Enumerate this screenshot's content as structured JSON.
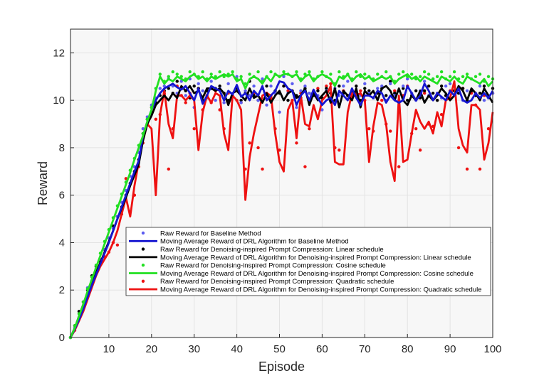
{
  "chart_data": {
    "type": "line",
    "title": "",
    "xlabel": "Episode",
    "ylabel": "Reward",
    "xlim": [
      1,
      100
    ],
    "ylim": [
      0,
      13
    ],
    "grid": true,
    "xticks": [
      "10",
      "20",
      "30",
      "40",
      "50",
      "60",
      "70",
      "80",
      "90",
      "100"
    ],
    "yticks": [
      "0",
      "2",
      "4",
      "6",
      "8",
      "10",
      "12"
    ],
    "legend_position": "bottom-right",
    "colors": {
      "baseline": "#1515d0",
      "baseline_raw": "#5c5cf0",
      "linear": "#000000",
      "cosine": "#22e022",
      "quadratic": "#ee1111",
      "axes_bg": "#f7f7f7",
      "grid": "#e3e3e3"
    },
    "legend": [
      "Raw Reward for Baseline Method",
      "Moving Average Reward of DRL Algorithm for Baseline Method",
      "Raw Reward for Denoising-inspired Prompt Compression: Linear schedule",
      "Moving Average Reward of DRL Algorithm for Denoising-inspired Prompt Compression: Linear schedule",
      "Raw Reward for Denoising-inspired Prompt Compression: Cosine schedule",
      "Moving Average Reward of DRL Algorithm for Denoising-inspired Prompt Compression: Cosine schedule",
      "Raw Reward for Denoising-inspired Prompt Compression: Quadratic schedule",
      "Moving Average Reward of DRL Algorithm for Denoising-inspired Prompt Compression: Quadratic schedule"
    ],
    "x": [
      1,
      2,
      3,
      4,
      5,
      6,
      7,
      8,
      9,
      10,
      11,
      12,
      13,
      14,
      15,
      16,
      17,
      18,
      19,
      20,
      21,
      22,
      23,
      24,
      25,
      26,
      27,
      28,
      29,
      30,
      31,
      32,
      33,
      34,
      35,
      36,
      37,
      38,
      39,
      40,
      41,
      42,
      43,
      44,
      45,
      46,
      47,
      48,
      49,
      50,
      51,
      52,
      53,
      54,
      55,
      56,
      57,
      58,
      59,
      60,
      61,
      62,
      63,
      64,
      65,
      66,
      67,
      68,
      69,
      70,
      71,
      72,
      73,
      74,
      75,
      76,
      77,
      78,
      79,
      80,
      81,
      82,
      83,
      84,
      85,
      86,
      87,
      88,
      89,
      90,
      91,
      92,
      93,
      94,
      95,
      96,
      97,
      98,
      99,
      100
    ],
    "series": [
      {
        "name": "Moving Average Reward of DRL Algorithm for Baseline Method",
        "values": [
          0.0,
          0.35,
          0.75,
          1.2,
          1.7,
          2.2,
          2.65,
          3.1,
          3.55,
          4.0,
          4.5,
          5.0,
          5.5,
          6.0,
          6.5,
          7.0,
          7.45,
          8.5,
          9.1,
          9.6,
          10.0,
          10.3,
          10.5,
          10.6,
          10.7,
          10.55,
          10.45,
          10.6,
          10.3,
          10.0,
          10.5,
          9.85,
          10.2,
          10.6,
          10.5,
          10.4,
          10.0,
          10.4,
          10.25,
          10.65,
          10.15,
          10.3,
          10.0,
          10.4,
          10.2,
          10.6,
          10.0,
          10.2,
          10.4,
          10.8,
          10.75,
          10.5,
          10.4,
          9.8,
          10.2,
          10.4,
          10.0,
          10.45,
          10.1,
          9.8,
          10.0,
          10.1,
          9.8,
          10.4,
          10.2,
          10.0,
          10.5,
          10.1,
          9.8,
          10.2,
          10.2,
          10.1,
          10.4,
          10.3,
          9.9,
          10.2,
          10.0,
          9.9,
          10.0,
          10.6,
          10.3,
          10.0,
          10.2,
          10.7,
          10.4,
          10.0,
          10.3,
          10.15,
          10.0,
          10.4,
          10.2,
          10.5,
          10.0,
          9.9,
          10.0,
          10.3,
          10.1,
          10.3,
          10.1,
          10.4
        ]
      },
      {
        "name": "Moving Average Reward of DRL Algorithm for Denoising-inspired Prompt Compression: Linear schedule",
        "values": [
          0.0,
          0.4,
          0.9,
          1.4,
          1.9,
          2.35,
          2.75,
          3.15,
          3.6,
          4.05,
          4.5,
          5.0,
          5.45,
          5.9,
          6.4,
          6.85,
          7.3,
          8.3,
          9.0,
          9.35,
          9.8,
          10.0,
          10.2,
          10.0,
          10.3,
          10.1,
          10.6,
          10.4,
          10.6,
          10.3,
          10.4,
          10.1,
          10.5,
          10.5,
          10.4,
          10.5,
          10.3,
          9.8,
          10.3,
          10.4,
          10.2,
          10.0,
          10.5,
          10.1,
          10.2,
          9.9,
          10.3,
          9.9,
          10.2,
          10.4,
          10.0,
          10.3,
          10.4,
          10.1,
          10.2,
          10.5,
          9.8,
          10.3,
          10.0,
          10.2,
          10.4,
          9.9,
          10.5,
          9.7,
          10.4,
          10.2,
          10.0,
          10.5,
          9.7,
          10.4,
          10.2,
          10.4,
          10.0,
          10.5,
          10.6,
          10.4,
          10.0,
          10.5,
          10.0,
          9.8,
          10.2,
          10.0,
          10.4,
          9.9,
          10.2,
          10.0,
          10.2,
          10.5,
          10.3,
          10.0,
          10.2,
          10.6,
          10.4,
          10.0,
          10.5,
          10.3,
          10.0,
          10.5,
          10.2,
          9.9
        ]
      },
      {
        "name": "Moving Average Reward of DRL Algorithm for Denoising-inspired Prompt Compression: Cosine schedule",
        "values": [
          0.0,
          0.4,
          0.9,
          1.4,
          1.95,
          2.45,
          2.95,
          3.45,
          3.95,
          4.45,
          4.95,
          5.45,
          5.95,
          6.45,
          6.95,
          7.5,
          8.0,
          8.5,
          9.1,
          9.6,
          10.4,
          11.0,
          10.7,
          10.9,
          10.8,
          11.0,
          10.9,
          10.8,
          11.0,
          11.1,
          10.9,
          11.0,
          10.8,
          11.0,
          10.9,
          11.0,
          11.1,
          11.0,
          11.1,
          10.8,
          10.9,
          10.5,
          10.9,
          11.0,
          10.9,
          10.7,
          11.0,
          10.8,
          11.1,
          11.0,
          11.1,
          11.1,
          11.0,
          11.1,
          10.8,
          11.0,
          11.1,
          10.8,
          11.0,
          11.1,
          11.0,
          10.9,
          10.6,
          11.0,
          10.9,
          11.1,
          10.8,
          11.0,
          11.1,
          10.9,
          11.0,
          10.8,
          10.9,
          11.0,
          10.9,
          11.0,
          10.7,
          10.9,
          11.0,
          11.1,
          10.9,
          11.0,
          10.8,
          11.0,
          10.9,
          10.8,
          10.7,
          11.0,
          10.9,
          10.8,
          11.0,
          10.8,
          10.7,
          11.0,
          10.9,
          10.8,
          10.7,
          10.9,
          10.6,
          10.8
        ]
      },
      {
        "name": "Moving Average Reward of DRL Algorithm for Denoising-inspired Prompt Compression: Quadratic schedule",
        "values": [
          0.0,
          0.3,
          0.7,
          1.1,
          1.6,
          2.1,
          2.6,
          3.0,
          3.3,
          3.6,
          4.0,
          4.5,
          5.2,
          5.9,
          5.1,
          6.4,
          7.4,
          8.3,
          9.0,
          8.8,
          6.0,
          9.4,
          10.4,
          9.0,
          8.4,
          10.2,
          10.2,
          10.0,
          10.2,
          10.0,
          7.9,
          9.5,
          10.2,
          9.9,
          10.3,
          10.2,
          8.6,
          7.9,
          10.2,
          10.0,
          9.6,
          5.8,
          7.6,
          8.6,
          9.4,
          10.2,
          10.3,
          10.2,
          8.6,
          7.4,
          7.0,
          9.6,
          10.0,
          8.4,
          10.2,
          9.0,
          8.9,
          9.8,
          9.2,
          10.0,
          10.2,
          10.6,
          7.4,
          7.3,
          7.3,
          9.5,
          10.3,
          10.2,
          10.3,
          10.0,
          7.4,
          8.9,
          9.9,
          9.8,
          9.0,
          7.4,
          6.6,
          10.2,
          7.4,
          7.5,
          8.6,
          9.6,
          9.1,
          8.8,
          9.1,
          8.6,
          9.5,
          8.9,
          10.0,
          10.1,
          10.8,
          8.8,
          8.1,
          7.8,
          9.8,
          9.8,
          9.6,
          7.5,
          8.2,
          9.5
        ]
      }
    ],
    "raw_points": [
      {
        "name": "Raw Reward for Baseline Method",
        "values": [
          0.0,
          0.4,
          0.85,
          1.3,
          2.1,
          2.4,
          2.9,
          3.3,
          3.7,
          4.2,
          4.6,
          5.1,
          5.7,
          6.2,
          6.8,
          7.2,
          7.8,
          8.8,
          9.3,
          9.8,
          10.1,
          10.5,
          10.6,
          10.9,
          10.6,
          10.3,
          10.8,
          10.2,
          10.9,
          9.7,
          10.7,
          10.4,
          10.1,
          10.8,
          10.0,
          10.5,
          9.9,
          10.7,
          10.2,
          11.0,
          9.9,
          10.4,
          10.2,
          10.6,
          10.0,
          10.9,
          9.8,
          10.6,
          10.3,
          9.5,
          11.0,
          10.3,
          10.7,
          9.7,
          10.4,
          10.6,
          10.3,
          10.9,
          10.2,
          9.6,
          10.4,
          10.1,
          10.5,
          10.2,
          10.6,
          10.8,
          10.1,
          10.4,
          10.2,
          10.7,
          10.3,
          10.1,
          10.5,
          10.6,
          10.0,
          10.7,
          10.2,
          10.0,
          10.6,
          10.9,
          10.3,
          10.0,
          10.4,
          10.8,
          10.2,
          10.9,
          10.3,
          10.1,
          10.6,
          10.7,
          10.2,
          10.5,
          10.0,
          10.4,
          10.9,
          10.3,
          10.6,
          10.0,
          10.1,
          10.3
        ]
      },
      {
        "name": "Raw Reward for Denoising-inspired Prompt Compression: Linear schedule",
        "values": [
          0.0,
          0.5,
          1.1,
          1.5,
          2.0,
          2.6,
          3.0,
          3.2,
          3.7,
          4.2,
          4.7,
          5.1,
          5.5,
          6.0,
          6.5,
          7.0,
          7.5,
          8.6,
          9.2,
          9.5,
          9.9,
          10.2,
          10.4,
          10.5,
          10.3,
          10.8,
          10.5,
          10.4,
          10.1,
          10.6,
          10.5,
          10.0,
          10.4,
          10.5,
          10.5,
          10.6,
          10.3,
          10.0,
          10.2,
          10.5,
          10.0,
          10.3,
          10.8,
          10.2,
          10.0,
          10.5,
          10.6,
          10.1,
          10.4,
          10.3,
          10.6,
          10.0,
          10.4,
          10.2,
          10.1,
          10.5,
          10.3,
          10.2,
          10.4,
          10.1,
          10.5,
          10.3,
          10.0,
          10.6,
          10.3,
          10.2,
          10.4,
          10.6,
          10.0,
          10.5,
          10.4,
          10.1,
          10.3,
          10.5,
          10.2,
          10.8,
          10.3,
          10.4,
          10.5,
          10.0,
          10.2,
          10.4,
          10.1,
          10.4,
          10.6,
          10.3,
          10.0,
          10.6,
          10.2,
          10.1,
          10.4,
          10.3,
          10.5,
          10.0,
          10.4,
          10.2,
          10.3,
          10.6,
          10.1,
          10.5
        ]
      },
      {
        "name": "Raw Reward for Denoising-inspired Prompt Compression: Cosine schedule",
        "values": [
          0.0,
          0.5,
          1.0,
          1.5,
          2.05,
          2.55,
          3.05,
          3.55,
          4.05,
          4.55,
          5.05,
          5.55,
          6.05,
          6.55,
          7.05,
          7.55,
          8.1,
          8.6,
          9.2,
          9.7,
          10.5,
          11.1,
          10.8,
          11.0,
          11.2,
          11.1,
          11.0,
          10.9,
          11.2,
          11.1,
          11.0,
          11.2,
          10.9,
          11.1,
          11.0,
          11.2,
          11.0,
          11.1,
          11.2,
          10.9,
          11.0,
          10.7,
          11.1,
          11.0,
          11.2,
          10.8,
          11.0,
          11.2,
          11.1,
          11.0,
          11.2,
          11.1,
          11.0,
          11.2,
          10.9,
          11.1,
          11.2,
          10.9,
          11.0,
          11.2,
          11.0,
          11.1,
          10.7,
          11.2,
          11.0,
          11.1,
          10.9,
          11.2,
          11.0,
          11.1,
          11.0,
          10.9,
          11.1,
          11.0,
          11.2,
          11.0,
          10.8,
          11.1,
          11.2,
          11.0,
          11.1,
          10.9,
          11.0,
          11.2,
          11.1,
          10.9,
          11.0,
          11.2,
          10.9,
          11.0,
          11.2,
          10.9,
          11.0,
          11.1,
          10.9,
          11.0,
          11.1,
          10.8,
          11.0,
          10.9
        ]
      },
      {
        "name": "Raw Reward for Denoising-inspired Prompt Compression: Quadratic schedule",
        "values": [
          0.0,
          0.3,
          0.8,
          1.2,
          1.7,
          2.2,
          2.7,
          3.1,
          3.4,
          3.6,
          4.0,
          3.9,
          5.2,
          6.7,
          5.3,
          6.0,
          7.2,
          8.2,
          9.0,
          9.7,
          9.2,
          9.4,
          10.3,
          7.1,
          8.8,
          10.6,
          10.2,
          9.9,
          10.3,
          8.8,
          10.5,
          9.6,
          10.2,
          9.9,
          10.4,
          9.6,
          8.8,
          10.3,
          10.2,
          10.0,
          9.9,
          7.1,
          8.2,
          10.3,
          8.0,
          7.1,
          10.3,
          10.2,
          8.8,
          7.9,
          10.6,
          10.4,
          10.0,
          8.2,
          10.3,
          7.2,
          8.8,
          10.4,
          10.5,
          10.1,
          10.6,
          10.7,
          8.0,
          7.9,
          10.4,
          10.2,
          10.3,
          10.3,
          10.4,
          10.0,
          8.8,
          8.7,
          10.3,
          10.0,
          9.0,
          8.7,
          10.4,
          7.2,
          10.2,
          10.6,
          8.6,
          8.8,
          7.9,
          10.3,
          9.0,
          8.9,
          10.3,
          9.4,
          10.2,
          10.4,
          10.6,
          8.0,
          10.5,
          7.1,
          10.3,
          9.8,
          7.1,
          10.2,
          8.8,
          10.3
        ]
      }
    ]
  }
}
